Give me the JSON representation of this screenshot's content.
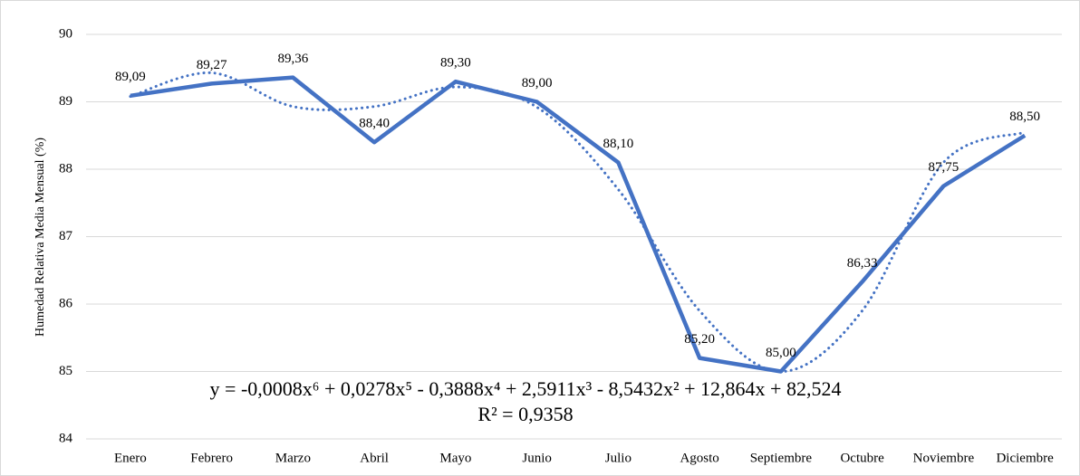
{
  "chart_data": {
    "type": "line",
    "y_label": "Humedad Relativa Media Mensual  (%)",
    "categories": [
      "Enero",
      "Febrero",
      "Marzo",
      "Abril",
      "Mayo",
      "Junio",
      "Julio",
      "Agosto",
      "Septiembre",
      "Octubre",
      "Noviembre",
      "Diciembre"
    ],
    "series": [
      {
        "color": "#4472c4",
        "values": [
          89.09,
          89.27,
          89.36,
          88.4,
          89.3,
          89.0,
          88.1,
          85.2,
          85.0,
          86.33,
          87.75,
          88.5
        ],
        "value_labels": [
          "89,09",
          "89,27",
          "89,36",
          "88,40",
          "89,30",
          "89,00",
          "88,10",
          "85,20",
          "85,00",
          "86,33",
          "87,75",
          "88,50"
        ]
      }
    ],
    "trendline": {
      "color": "#4472c4",
      "style": "dotted",
      "values": [
        89.08,
        89.43,
        88.93,
        88.93,
        89.22,
        88.92,
        87.7,
        85.9,
        85.0,
        85.9,
        88.1,
        88.55
      ],
      "equation": "y = -0,0008x⁶ + 0,0278x⁵ - 0,3888x⁴ + 2,5911x³ - 8,5432x² + 12,864x + 82,524",
      "r_squared": "R² = 0,9358"
    },
    "ylim": [
      84,
      90
    ],
    "yticks": [
      84,
      85,
      86,
      87,
      88,
      89,
      90
    ],
    "grid": true
  }
}
